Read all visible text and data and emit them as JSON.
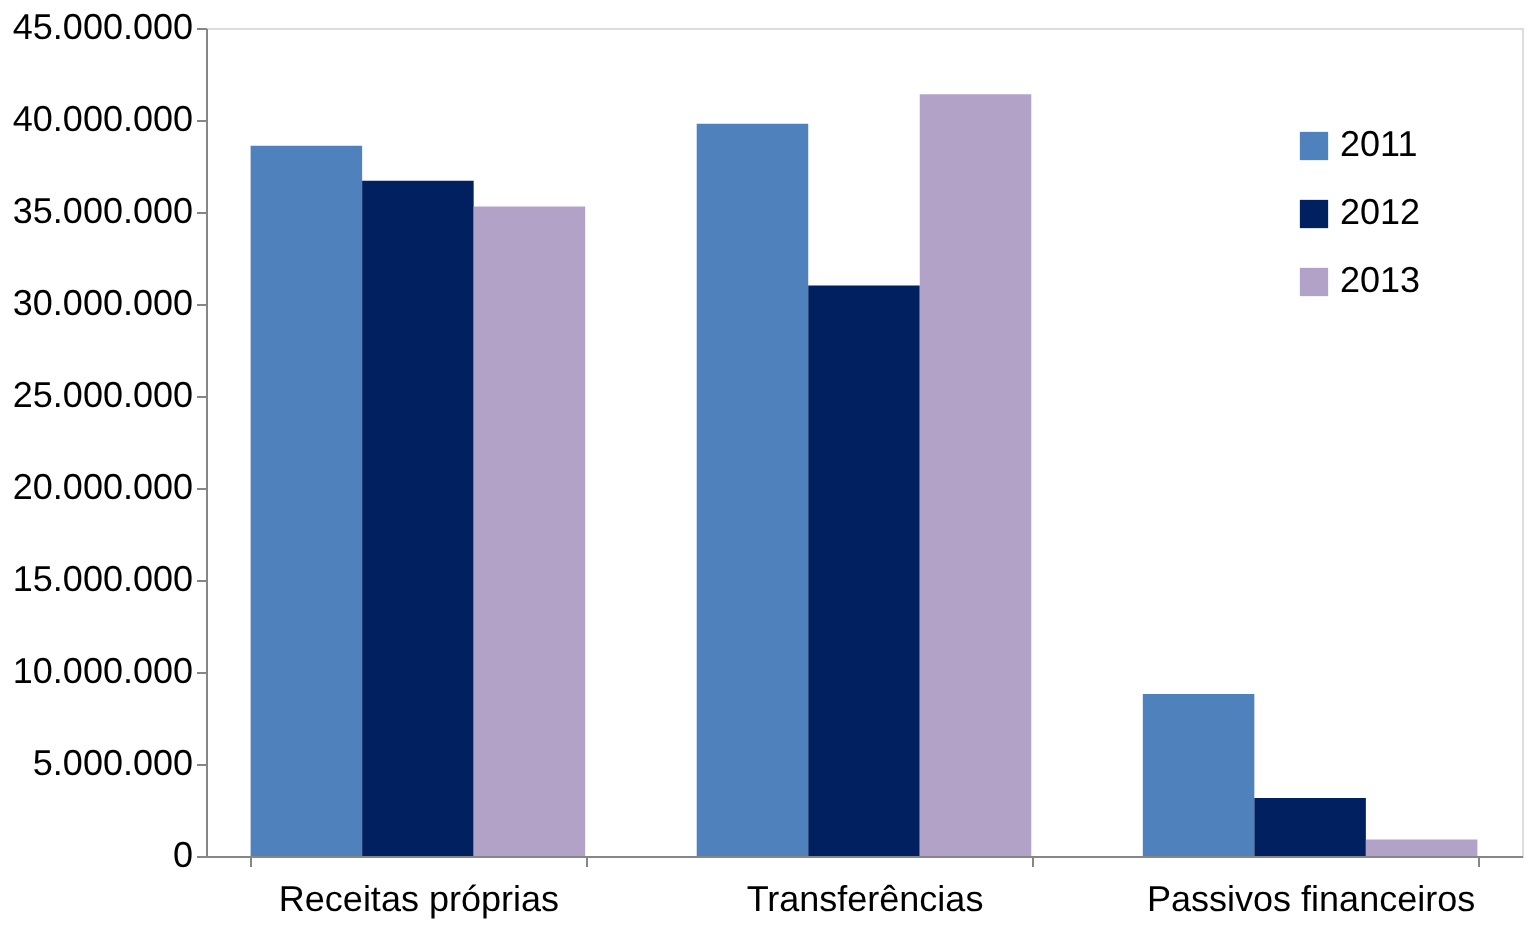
{
  "chart_data": {
    "type": "bar",
    "categories": [
      "Receitas próprias",
      "Transferências",
      "Passivos financeiros"
    ],
    "series": [
      {
        "name": "2011",
        "color": "#4f81bd",
        "values": [
          38600000,
          39800000,
          8800000
        ]
      },
      {
        "name": "2012",
        "color": "#002060",
        "values": [
          36700000,
          31000000,
          3150000
        ]
      },
      {
        "name": "2013",
        "color": "#b2a2c7",
        "values": [
          35300000,
          41400000,
          900000
        ]
      }
    ],
    "ylim": [
      0,
      45000000
    ],
    "yticks": [
      {
        "value": 0,
        "label": "0"
      },
      {
        "value": 5000000,
        "label": "5.000.000"
      },
      {
        "value": 10000000,
        "label": "10.000.000"
      },
      {
        "value": 15000000,
        "label": "15.000.000"
      },
      {
        "value": 20000000,
        "label": "20.000.000"
      },
      {
        "value": 25000000,
        "label": "25.000.000"
      },
      {
        "value": 30000000,
        "label": "30.000.000"
      },
      {
        "value": 35000000,
        "label": "35.000.000"
      },
      {
        "value": 40000000,
        "label": "40.000.000"
      },
      {
        "value": 45000000,
        "label": "45.000.000"
      }
    ],
    "grid": false,
    "legend": "top right"
  }
}
